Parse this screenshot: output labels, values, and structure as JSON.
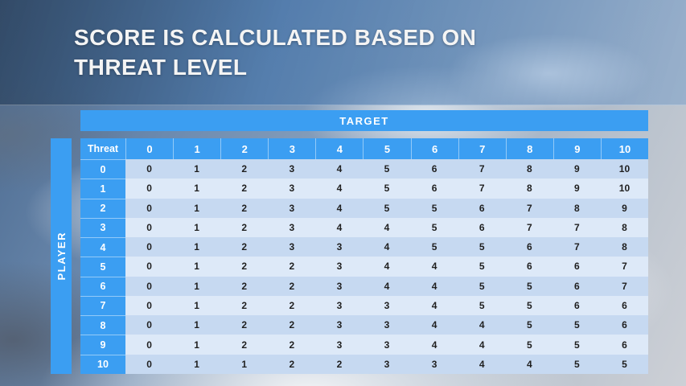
{
  "slide": {
    "title_line1": "SCORE IS CALCULATED BASED ON",
    "title_line2": "THREAT LEVEL"
  },
  "table": {
    "target_label": "TARGET",
    "player_label": "PLAYER",
    "corner_label": "Threat",
    "column_headers": [
      "0",
      "1",
      "2",
      "3",
      "4",
      "5",
      "6",
      "7",
      "8",
      "9",
      "10"
    ],
    "rows": [
      {
        "threat": "0",
        "values": [
          "0",
          "1",
          "2",
          "3",
          "4",
          "5",
          "6",
          "7",
          "8",
          "9",
          "10"
        ]
      },
      {
        "threat": "1",
        "values": [
          "0",
          "1",
          "2",
          "3",
          "4",
          "5",
          "6",
          "7",
          "8",
          "9",
          "10"
        ]
      },
      {
        "threat": "2",
        "values": [
          "0",
          "1",
          "2",
          "3",
          "4",
          "5",
          "5",
          "6",
          "7",
          "8",
          "9"
        ]
      },
      {
        "threat": "3",
        "values": [
          "0",
          "1",
          "2",
          "3",
          "4",
          "4",
          "5",
          "6",
          "7",
          "7",
          "8"
        ]
      },
      {
        "threat": "4",
        "values": [
          "0",
          "1",
          "2",
          "3",
          "3",
          "4",
          "5",
          "5",
          "6",
          "7",
          "8"
        ]
      },
      {
        "threat": "5",
        "values": [
          "0",
          "1",
          "2",
          "2",
          "3",
          "4",
          "4",
          "5",
          "6",
          "6",
          "7"
        ]
      },
      {
        "threat": "6",
        "values": [
          "0",
          "1",
          "2",
          "2",
          "3",
          "4",
          "4",
          "5",
          "5",
          "6",
          "7"
        ]
      },
      {
        "threat": "7",
        "values": [
          "0",
          "1",
          "2",
          "2",
          "3",
          "3",
          "4",
          "5",
          "5",
          "6",
          "6"
        ]
      },
      {
        "threat": "8",
        "values": [
          "0",
          "1",
          "2",
          "2",
          "3",
          "3",
          "4",
          "4",
          "5",
          "5",
          "6"
        ]
      },
      {
        "threat": "9",
        "values": [
          "0",
          "1",
          "2",
          "2",
          "3",
          "3",
          "4",
          "4",
          "5",
          "5",
          "6"
        ]
      },
      {
        "threat": "10",
        "values": [
          "0",
          "1",
          "1",
          "2",
          "2",
          "3",
          "3",
          "4",
          "4",
          "5",
          "5"
        ]
      }
    ]
  },
  "colors": {
    "header_blue": "#3b9ef2",
    "row_band_dark": "#c6d9f1",
    "row_band_light": "#dde9f8",
    "title_text": "#f4f4f4"
  },
  "chart_data": {
    "type": "table",
    "title": "Score is calculated based on threat level",
    "row_axis_label": "PLAYER (Threat)",
    "column_axis_label": "TARGET",
    "columns": [
      0,
      1,
      2,
      3,
      4,
      5,
      6,
      7,
      8,
      9,
      10
    ],
    "rows": [
      0,
      1,
      2,
      3,
      4,
      5,
      6,
      7,
      8,
      9,
      10
    ],
    "matrix": [
      [
        0,
        1,
        2,
        3,
        4,
        5,
        6,
        7,
        8,
        9,
        10
      ],
      [
        0,
        1,
        2,
        3,
        4,
        5,
        6,
        7,
        8,
        9,
        10
      ],
      [
        0,
        1,
        2,
        3,
        4,
        5,
        5,
        6,
        7,
        8,
        9
      ],
      [
        0,
        1,
        2,
        3,
        4,
        4,
        5,
        6,
        7,
        7,
        8
      ],
      [
        0,
        1,
        2,
        3,
        3,
        4,
        5,
        5,
        6,
        7,
        8
      ],
      [
        0,
        1,
        2,
        2,
        3,
        4,
        4,
        5,
        6,
        6,
        7
      ],
      [
        0,
        1,
        2,
        2,
        3,
        4,
        4,
        5,
        5,
        6,
        7
      ],
      [
        0,
        1,
        2,
        2,
        3,
        3,
        4,
        5,
        5,
        6,
        6
      ],
      [
        0,
        1,
        2,
        2,
        3,
        3,
        4,
        4,
        5,
        5,
        6
      ],
      [
        0,
        1,
        2,
        2,
        3,
        3,
        4,
        4,
        5,
        5,
        6
      ],
      [
        0,
        1,
        1,
        2,
        2,
        3,
        3,
        4,
        4,
        5,
        5
      ]
    ]
  }
}
